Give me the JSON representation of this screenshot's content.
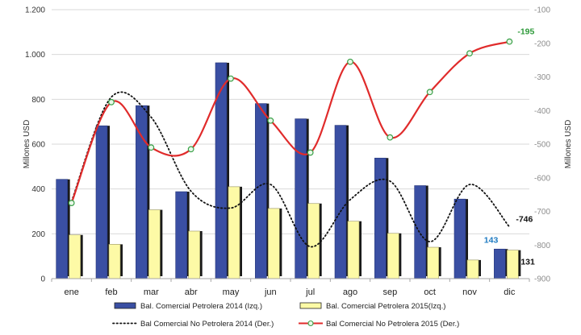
{
  "chart_data": {
    "type": "bar",
    "categories": [
      "ene",
      "feb",
      "mar",
      "abr",
      "may",
      "jun",
      "jul",
      "ago",
      "sep",
      "oct",
      "nov",
      "dic"
    ],
    "y_left": {
      "label": "Millones USD",
      "ylim": [
        0,
        1200
      ],
      "ticks": [
        0,
        200,
        400,
        600,
        800,
        1000,
        1200
      ],
      "tick_labels": [
        "0",
        "200",
        "400",
        "600",
        "800",
        "1.000",
        "1.200"
      ]
    },
    "y_right": {
      "label": "Millones USD",
      "ylim": [
        -900,
        -100
      ],
      "ticks": [
        -900,
        -800,
        -700,
        -600,
        -500,
        -400,
        -300,
        -200,
        -100
      ],
      "tick_labels": [
        "-900",
        "-800",
        "-700",
        "-600",
        "-500",
        "-400",
        "-300",
        "-200",
        "-100"
      ]
    },
    "grid": "horizontal",
    "legend_position": "bottom",
    "series": [
      {
        "name": "Bal. Comercial Petrolera 2014 (Izq.)",
        "type": "bar",
        "axis": "left",
        "color": "#3a4fa3",
        "values": [
          443,
          682,
          772,
          388,
          963,
          781,
          713,
          684,
          538,
          415,
          355,
          132
        ]
      },
      {
        "name": "Bal. Comercial Petrolera 2015(Izq.)",
        "type": "bar",
        "axis": "left",
        "color": "#fdfaa6",
        "values": [
          195,
          153,
          307,
          212,
          410,
          313,
          335,
          256,
          202,
          140,
          83,
          127
        ]
      },
      {
        "name": "Bal Comercial No Petrolera 2014 (Der.)",
        "type": "line",
        "style": "dotted",
        "axis": "right",
        "color": "#111111",
        "values": [
          -670,
          -360,
          -420,
          -640,
          -690,
          -620,
          -805,
          -665,
          -610,
          -790,
          -620,
          -746
        ]
      },
      {
        "name": "Bal Comercial No Petrolera 2015 (Der.)",
        "type": "line",
        "style": "solid-markers",
        "axis": "right",
        "color": "#e02b2b",
        "values": [
          -675,
          -375,
          -510,
          -515,
          -305,
          -430,
          -525,
          -255,
          -480,
          -345,
          -230,
          -195
        ]
      }
    ],
    "data_labels": [
      {
        "text": "143",
        "color": "#1f7bc2"
      },
      {
        "text": "131",
        "color": "#111111"
      },
      {
        "text": "-746",
        "color": "#111111"
      },
      {
        "text": "-195",
        "color": "#2e9a3a"
      }
    ]
  }
}
